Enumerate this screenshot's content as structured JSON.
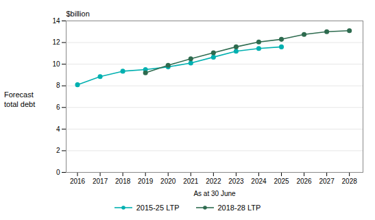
{
  "chart_data": {
    "type": "line",
    "annotations": [
      "$billion"
    ],
    "xlabel": "As at 30 June",
    "ylabel": "Forecast\ntotal debt",
    "x": [
      2016,
      2017,
      2018,
      2019,
      2020,
      2021,
      2022,
      2023,
      2024,
      2025,
      2026,
      2027,
      2028
    ],
    "series": [
      {
        "name": "2015-25 LTP",
        "color": "#00b0b0",
        "marker": "circle",
        "line_style": "solid",
        "values": [
          8.1,
          8.85,
          9.35,
          9.5,
          9.75,
          10.1,
          10.65,
          11.2,
          11.45,
          11.6,
          null,
          null,
          null
        ]
      },
      {
        "name": "2018-28 LTP",
        "color": "#2e6b4f",
        "marker": "circle",
        "line_style": "solid",
        "values": [
          null,
          null,
          null,
          9.2,
          9.9,
          10.5,
          11.05,
          11.6,
          12.05,
          12.3,
          12.75,
          13.0,
          13.1
        ]
      }
    ],
    "xlim": [
      2015.5,
      2028.6
    ],
    "xticks": [
      2016,
      2017,
      2018,
      2019,
      2020,
      2021,
      2022,
      2023,
      2024,
      2025,
      2026,
      2027,
      2028
    ],
    "ylim": [
      0,
      14
    ],
    "yticks": [
      0,
      2,
      4,
      6,
      8,
      10,
      12,
      14
    ],
    "grid": true,
    "legend": "bottom"
  }
}
